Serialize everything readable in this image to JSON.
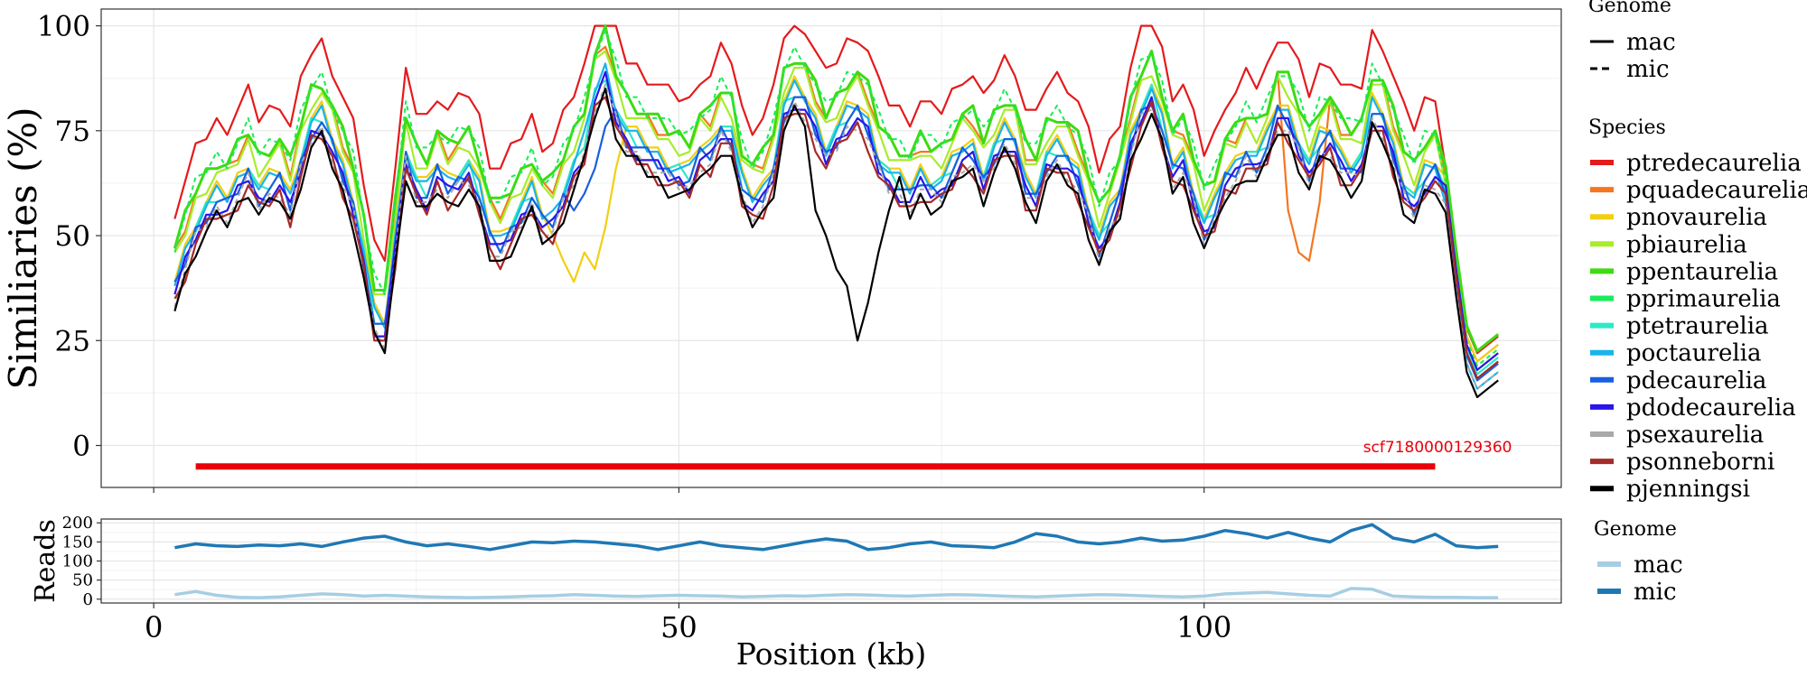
{
  "chart_data": [
    {
      "type": "line",
      "panel": "similarity",
      "ylabel": "Similiaries (%)",
      "xlabel": "",
      "xlim": [
        -5,
        134
      ],
      "ylim": [
        -10,
        104
      ],
      "yticks": [
        0,
        25,
        50,
        75,
        100
      ],
      "xticks": [
        0,
        50,
        100
      ],
      "legend_genome": {
        "title": "Genome",
        "entries": [
          {
            "name": "mac",
            "dash": "solid"
          },
          {
            "name": "mic",
            "dash": "dashed"
          }
        ]
      },
      "legend_species": {
        "title": "Species"
      },
      "x": [
        2,
        3,
        4,
        5,
        6,
        7,
        8,
        9,
        10,
        11,
        12,
        13,
        14,
        15,
        16,
        17,
        18,
        19,
        20,
        21,
        22,
        23,
        24,
        25,
        26,
        27,
        28,
        29,
        30,
        31,
        32,
        33,
        34,
        35,
        36,
        37,
        38,
        39,
        40,
        41,
        42,
        43,
        44,
        45,
        46,
        47,
        48,
        49,
        50,
        51,
        52,
        53,
        54,
        55,
        56,
        57,
        58,
        59,
        60,
        61,
        62,
        63,
        64,
        65,
        66,
        67,
        68,
        69,
        70,
        71,
        72,
        73,
        74,
        75,
        76,
        77,
        78,
        79,
        80,
        81,
        82,
        83,
        84,
        85,
        86,
        87,
        88,
        89,
        90,
        91,
        92,
        93,
        94,
        95,
        96,
        97,
        98,
        99,
        100,
        101,
        102,
        103,
        104,
        105,
        106,
        107,
        108,
        109,
        110,
        111,
        112,
        113,
        114,
        115,
        116,
        117,
        118,
        119,
        120,
        121,
        122,
        123,
        124,
        125,
        126,
        127,
        128
      ],
      "base": [
        38,
        45,
        52,
        56,
        59,
        58,
        62,
        66,
        60,
        62,
        64,
        58,
        68,
        76,
        78,
        72,
        65,
        58,
        45,
        30,
        28,
        48,
        70,
        62,
        60,
        66,
        62,
        64,
        66,
        60,
        50,
        48,
        52,
        56,
        60,
        54,
        54,
        60,
        66,
        72,
        84,
        89,
        80,
        74,
        72,
        70,
        68,
        66,
        65,
        64,
        70,
        70,
        76,
        74,
        62,
        58,
        60,
        66,
        80,
        84,
        82,
        76,
        70,
        74,
        78,
        80,
        76,
        68,
        64,
        62,
        60,
        64,
        62,
        62,
        66,
        70,
        70,
        64,
        70,
        74,
        72,
        62,
        60,
        68,
        70,
        68,
        64,
        56,
        48,
        54,
        60,
        72,
        80,
        84,
        76,
        66,
        68,
        60,
        52,
        56,
        64,
        66,
        70,
        68,
        72,
        80,
        78,
        72,
        66,
        72,
        74,
        68,
        66,
        68,
        80,
        78,
        70,
        62,
        58,
        64,
        66,
        60,
        40,
        22,
        16,
        18,
        20,
        14,
        10
      ],
      "series": [
        {
          "name": "ptredecaurelia",
          "color": "#e41a1c",
          "genome": "mac",
          "offset": 18,
          "width": 2.2
        },
        {
          "name": "pquadecaurelia",
          "color": "#f5761f",
          "genome": "mac",
          "offset": 8,
          "width": 2.2
        },
        {
          "name": "pnovaurelia",
          "color": "#f2cf12",
          "genome": "mac",
          "offset": 2,
          "width": 2.2
        },
        {
          "name": "pbiaurelia",
          "color": "#a8ec2a",
          "genome": "mac",
          "offset": 6,
          "width": 2.2
        },
        {
          "name": "ppentaurelia",
          "color": "#3ddb12",
          "genome": "mac",
          "offset": 9,
          "width": 3
        },
        {
          "name": "pprimaurelia",
          "color": "#18ec5a",
          "genome": "mic",
          "offset": 10,
          "width": 2
        },
        {
          "name": "ptetraurelia",
          "color": "#2ee8c8",
          "genome": "mac",
          "offset": 0,
          "width": 2.2
        },
        {
          "name": "poctaurelia",
          "color": "#18b4ec",
          "genome": "mac",
          "offset": 1,
          "width": 2.2
        },
        {
          "name": "pdecaurelia",
          "color": "#1a5fe0",
          "genome": "mac",
          "offset": -1,
          "width": 2.2
        },
        {
          "name": "pdodecaurelia",
          "color": "#2a16e8",
          "genome": "mac",
          "offset": -2,
          "width": 2.2
        },
        {
          "name": "psexaurelia",
          "color": "#a9a9a9",
          "genome": "mic",
          "offset": -3,
          "width": 2
        },
        {
          "name": "psonneborni",
          "color": "#a52a2a",
          "genome": "mac",
          "offset": -4,
          "width": 2.2
        },
        {
          "name": "pjenningsi",
          "color": "#000000",
          "genome": "mac",
          "offset": -5,
          "width": 2.2
        }
      ],
      "dips": [
        {
          "series": "pnovaurelia",
          "x": [
            38,
            39,
            40,
            41,
            42,
            43,
            44
          ],
          "y": [
            50,
            44,
            39,
            46,
            42,
            52,
            66
          ]
        },
        {
          "series": "pjenningsi",
          "x": [
            63,
            64,
            65,
            66,
            67,
            68,
            69,
            70,
            71
          ],
          "y": [
            56,
            50,
            42,
            38,
            25,
            34,
            46,
            56,
            64
          ]
        },
        {
          "series": "pquadecaurelia",
          "x": [
            108,
            109,
            110,
            111
          ],
          "y": [
            56,
            46,
            44,
            58
          ]
        },
        {
          "series": "pdecaurelia",
          "x": [
            40,
            41,
            42,
            43
          ],
          "y": [
            56,
            60,
            66,
            76
          ]
        }
      ],
      "scaffold": {
        "label": "scf7180000129360",
        "start": 4,
        "end": 122,
        "y": -5,
        "color": "#e8000b"
      }
    },
    {
      "type": "line",
      "panel": "reads",
      "ylabel": "Reads",
      "xlabel": "Position (kb)",
      "xlim": [
        -5,
        134
      ],
      "ylim": [
        -10,
        210
      ],
      "yticks": [
        0,
        50,
        100,
        150,
        200
      ],
      "xticks": [
        0,
        50,
        100
      ],
      "legend": {
        "title": "Genome"
      },
      "x": [
        2,
        4,
        6,
        8,
        10,
        12,
        14,
        16,
        18,
        20,
        22,
        24,
        26,
        28,
        30,
        32,
        34,
        36,
        38,
        40,
        42,
        44,
        46,
        48,
        50,
        52,
        54,
        56,
        58,
        60,
        62,
        64,
        66,
        68,
        70,
        72,
        74,
        76,
        78,
        80,
        82,
        84,
        86,
        88,
        90,
        92,
        94,
        96,
        98,
        100,
        102,
        104,
        106,
        108,
        110,
        112,
        114,
        116,
        118,
        120,
        122,
        124,
        126,
        128
      ],
      "series": [
        {
          "name": "mac",
          "color": "#a6cee3",
          "values": [
            12,
            20,
            10,
            5,
            4,
            6,
            10,
            14,
            12,
            8,
            10,
            8,
            6,
            5,
            4,
            5,
            6,
            8,
            9,
            12,
            10,
            8,
            7,
            9,
            10,
            9,
            8,
            6,
            7,
            9,
            8,
            10,
            12,
            11,
            9,
            8,
            10,
            12,
            11,
            9,
            7,
            6,
            8,
            10,
            12,
            11,
            9,
            7,
            6,
            8,
            14,
            16,
            18,
            14,
            10,
            8,
            28,
            26,
            8,
            6,
            5,
            5,
            4,
            4
          ],
          "width": 3.5
        },
        {
          "name": "mic",
          "color": "#1f78b4",
          "values": [
            135,
            145,
            140,
            138,
            142,
            140,
            145,
            138,
            150,
            160,
            165,
            150,
            140,
            145,
            138,
            130,
            140,
            150,
            148,
            152,
            150,
            145,
            140,
            130,
            140,
            150,
            140,
            135,
            130,
            140,
            150,
            158,
            152,
            130,
            135,
            145,
            150,
            140,
            138,
            135,
            150,
            172,
            165,
            150,
            145,
            150,
            160,
            152,
            155,
            165,
            180,
            172,
            160,
            175,
            160,
            150,
            180,
            195,
            160,
            150,
            170,
            140,
            135,
            138
          ],
          "width": 3.5
        }
      ]
    }
  ]
}
